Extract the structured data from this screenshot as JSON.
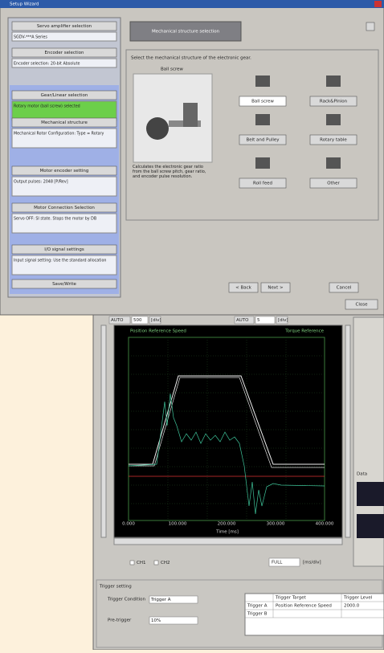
{
  "setup_window": {
    "title": "Setup Wizard",
    "steps": [
      {
        "button": "Servo amplifier selection",
        "info": "SGDV-***A Series"
      },
      {
        "button": "Encoder selection",
        "info": "Encoder selection: 20-bit Absolute"
      },
      {
        "button": "Gear/Linear selection",
        "info": "Rotary motor (ball screw) selected"
      },
      {
        "button": "Mechanical structure",
        "info": "Mechanical Rotor Configuration: Type = Rotary"
      },
      {
        "button": "Motor encoder setting",
        "info": "Output pulses: 2048 [P/Rev]"
      },
      {
        "button": "Motor Connection Selection",
        "info": "Servo OFF: SI state. Stops the motor by DB"
      },
      {
        "button": "I/O signal settings",
        "info": "Input signal setting: Use the standard allocation"
      },
      {
        "button": "Save/Write"
      }
    ],
    "header": "Mechanical structure selection",
    "instruction": "Select the mechanical structure of the electronic gear.",
    "preview_label": "Ball screw",
    "description": "Calculates the electronic gear ratio from the ball screw pitch, gear ratio, and encoder pulse resolution.",
    "options": [
      "Ball screw",
      "Rack&Pinion",
      "Belt and Pulley",
      "Rotary table",
      "Roll feed",
      "Other"
    ],
    "buttons": [
      "< Back",
      "Next >",
      "Cancel"
    ],
    "close": "Close"
  },
  "scope_window": {
    "toolbar": [
      "AUTO",
      "500",
      "[div]",
      "AUTO",
      "5",
      "[div]"
    ],
    "legend_left": "Position Reference Speed",
    "legend_right": "Torque Reference",
    "x_labels": [
      "0.000",
      "100.000",
      "200.000",
      "300.000",
      "400.000"
    ],
    "x_title": "Time [ms]",
    "checks": [
      "CH1",
      "CH2"
    ],
    "range": "FULL",
    "range_unit": "[ms/div]",
    "trigger": {
      "title": "Trigger setting",
      "condition_label": "Trigger Condition",
      "condition": "Trigger A",
      "next_label": "Pre-trigger",
      "next": "10%",
      "columns": [
        "Trigger Target",
        "Trigger Level"
      ],
      "rows": [
        [
          "Trigger A",
          "Position Reference Speed",
          "2000.0"
        ],
        [
          "Trigger B",
          "",
          ""
        ]
      ]
    },
    "side": [
      "Data"
    ]
  }
}
